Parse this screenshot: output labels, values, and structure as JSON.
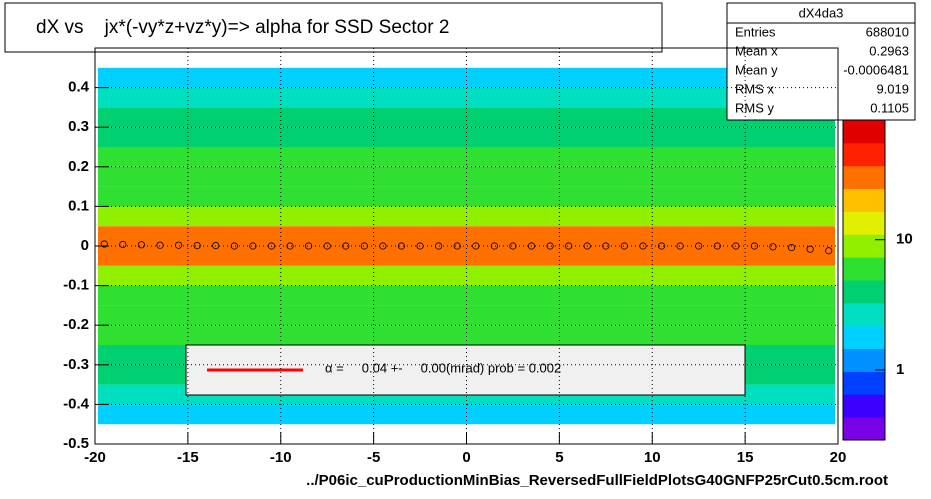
{
  "chart_data": {
    "type": "histogram2d",
    "title": "dX vs    jx*(-vy*z+vz*y)=> alpha for SSD Sector 2",
    "x_label": "../P06ic_cuProductionMinBias_ReversedFullFieldPlotsG40GNFP25rCut0.5cm.root",
    "xlim": [
      -20,
      20
    ],
    "ylim": [
      -0.5,
      0.5
    ],
    "xticks": [
      -20,
      -15,
      -10,
      -5,
      0,
      5,
      10,
      15,
      20
    ],
    "yticks": [
      -0.5,
      -0.4,
      -0.3,
      -0.2,
      -0.1,
      0,
      0.1,
      0.2,
      0.3,
      0.4
    ],
    "grid": true,
    "y_bins": [
      -0.45,
      -0.4,
      -0.35,
      -0.3,
      -0.25,
      -0.2,
      -0.15,
      -0.1,
      -0.05,
      0,
      0.05,
      0.1,
      0.15,
      0.2,
      0.25,
      0.3,
      0.35,
      0.4,
      0.45
    ],
    "z": [
      1.5,
      3,
      4,
      4.5,
      5,
      6,
      7,
      9,
      30,
      30,
      9,
      7,
      6,
      5,
      4.5,
      4,
      3,
      2
    ],
    "zlim": [
      0.29,
      83
    ],
    "zticks": [
      1,
      10
    ],
    "log_z": true,
    "palette": [
      "#7a00e6",
      "#3c00ff",
      "#0040ff",
      "#0090ff",
      "#00d0ff",
      "#00e0c0",
      "#00d070",
      "#30e030",
      "#90f000",
      "#e0f000",
      "#ffc000",
      "#ff7000",
      "#ff2000",
      "#e00000"
    ],
    "profile": {
      "x": [
        -19.5,
        -18.5,
        -17.5,
        -16.5,
        -15.5,
        -14.5,
        -13.5,
        -12.5,
        -11.5,
        -10.5,
        -9.5,
        -8.5,
        -7.5,
        -6.5,
        -5.5,
        -4.5,
        -3.5,
        -2.5,
        -1.5,
        -0.5,
        0.5,
        1.5,
        2.5,
        3.5,
        4.5,
        5.5,
        6.5,
        7.5,
        8.5,
        9.5,
        10.5,
        11.5,
        12.5,
        13.5,
        14.5,
        15.5,
        16.5,
        17.5,
        18.5,
        19.5
      ],
      "values": [
        0.005,
        0.004,
        0.003,
        0.002,
        0.002,
        0.001,
        0.001,
        0,
        0,
        0,
        0,
        0,
        0,
        0,
        0,
        0,
        0,
        0,
        0,
        0,
        0,
        0,
        0,
        0,
        0,
        0,
        0,
        0,
        0,
        0,
        0,
        0,
        0,
        0,
        0,
        0,
        -0.002,
        -0.004,
        -0.008,
        -0.012
      ]
    },
    "stats": {
      "name": "dX4da3",
      "labels": [
        "Entries",
        "Mean x",
        "Mean y",
        "RMS x",
        "RMS y"
      ],
      "values": [
        688010,
        0.2963,
        -0.0006481,
        9.019,
        0.1105
      ]
    },
    "fit_label": "α =     0.04 +-     0.00(mrad) prob = 0.002",
    "fit_color": "#ff0000"
  }
}
